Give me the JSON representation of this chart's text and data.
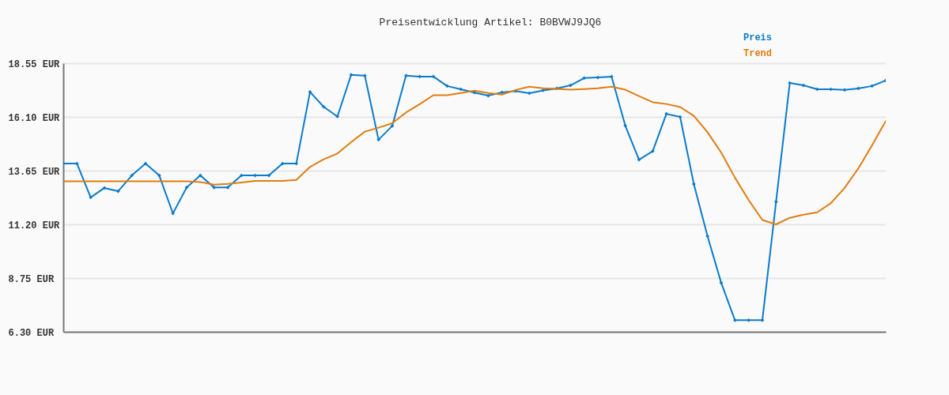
{
  "chart_data": {
    "type": "line",
    "title": "Preisentwicklung Artikel: B0BVWJ9JQ6",
    "categories": [
      null,
      null,
      null,
      null,
      null,
      null,
      null,
      null,
      null,
      null,
      null,
      null,
      null,
      null,
      null,
      null,
      null,
      null,
      null,
      null,
      null,
      null,
      null,
      null,
      null,
      null,
      null,
      null,
      null,
      null,
      null,
      null,
      null,
      null,
      null,
      null,
      null,
      null,
      null,
      null,
      null,
      null,
      null,
      null,
      null,
      null,
      null,
      null,
      null,
      null,
      null,
      null,
      null,
      null,
      null,
      null,
      null,
      null,
      null,
      null,
      null
    ],
    "series": [
      {
        "name": "Preis",
        "color": "#0b7bcb",
        "marker": "diamond",
        "values": [
          13.97,
          13.97,
          12.43,
          12.86,
          12.71,
          13.43,
          13.97,
          13.43,
          11.7,
          12.88,
          13.43,
          12.88,
          12.88,
          13.43,
          13.43,
          13.43,
          13.97,
          13.97,
          17.24,
          16.56,
          16.12,
          18.02,
          17.98,
          15.06,
          15.69,
          17.98,
          17.94,
          17.94,
          17.51,
          17.36,
          17.21,
          17.07,
          17.22,
          17.28,
          17.18,
          17.31,
          17.4,
          17.54,
          17.87,
          17.9,
          17.94,
          15.7,
          14.15,
          14.54,
          16.24,
          16.1,
          13.04,
          10.66,
          8.53,
          6.83,
          6.83,
          6.83,
          12.23,
          17.65,
          17.54,
          17.36,
          17.36,
          17.33,
          17.4,
          17.51,
          17.76
        ]
      },
      {
        "name": "Trend",
        "color": "#e07d10",
        "marker": "none",
        "values": [
          13.16,
          13.16,
          13.16,
          13.16,
          13.16,
          13.16,
          13.16,
          13.16,
          13.16,
          13.16,
          13.13,
          13.01,
          13.05,
          13.11,
          13.18,
          13.18,
          13.18,
          13.23,
          13.82,
          14.17,
          14.43,
          14.95,
          15.43,
          15.61,
          15.81,
          16.3,
          16.68,
          17.09,
          17.09,
          17.19,
          17.3,
          17.19,
          17.12,
          17.33,
          17.48,
          17.41,
          17.38,
          17.34,
          17.37,
          17.41,
          17.48,
          17.34,
          17.05,
          16.77,
          16.69,
          16.55,
          16.15,
          15.4,
          14.47,
          13.33,
          12.31,
          11.4,
          11.2,
          11.5,
          11.64,
          11.75,
          12.17,
          12.86,
          13.75,
          14.8,
          15.91
        ]
      }
    ],
    "ylim": [
      6.3,
      18.55
    ],
    "yticks": [
      {
        "value": 6.3,
        "label": "6.30 EUR"
      },
      {
        "value": 8.75,
        "label": "8.75 EUR"
      },
      {
        "value": 11.2,
        "label": "11.20 EUR"
      },
      {
        "value": 13.65,
        "label": "13.65 EUR"
      },
      {
        "value": 16.1,
        "label": "16.10 EUR"
      },
      {
        "value": 18.55,
        "label": "18.55 EUR"
      }
    ],
    "grid": "y",
    "legend": "top right",
    "tick_labels": "y",
    "line_style": "solid"
  }
}
